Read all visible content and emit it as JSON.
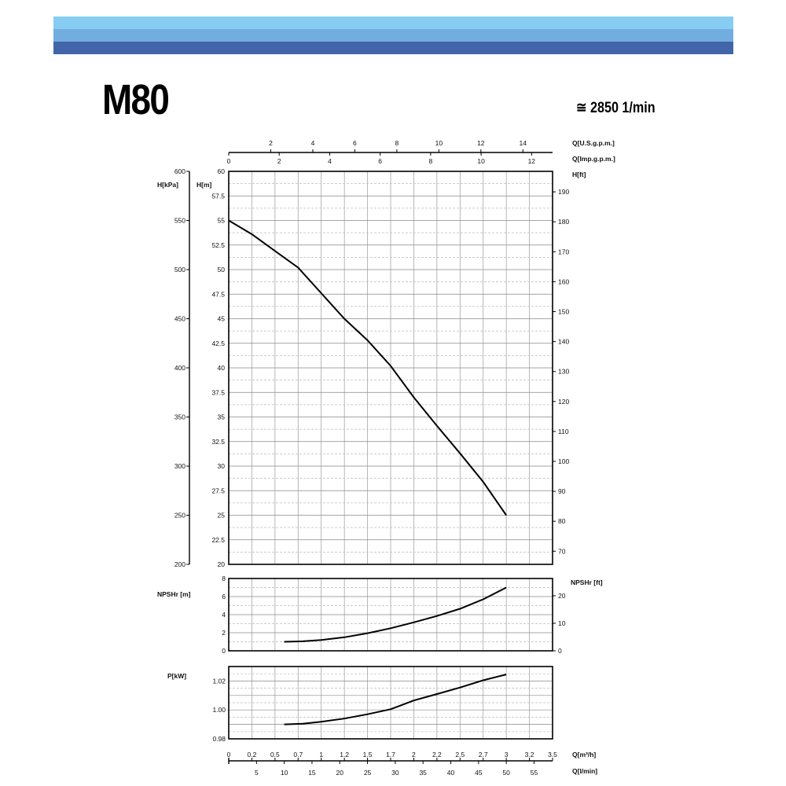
{
  "header": {
    "colors": [
      "#87ccf2",
      "#72ade0",
      "#4264a8"
    ],
    "title": "M80",
    "speed": "≅ 2850 1/min"
  },
  "chart_data": [
    {
      "type": "line",
      "name": "head-curve",
      "xlabel": "Q[m³/h]",
      "x2label": "Q[l/min]",
      "ylabel": "H[m]",
      "ylabel_kpa": "H[kPa]",
      "ylabel_ft": "H[ft]",
      "top_label_usgpm": "Q[U.S.g.p.m.]",
      "top_label_impgpm": "Q[Imp.g.p.m.]",
      "xlim": [
        0,
        3.5
      ],
      "ylim": [
        20,
        60
      ],
      "x_ticks_m3h": [
        "0",
        "0.2",
        "0.5",
        "0.7",
        "1",
        "1.2",
        "1.5",
        "1.7",
        "2",
        "2.2",
        "2.5",
        "2.7",
        "3",
        "3.2",
        "3.5"
      ],
      "x_ticks_lmin": [
        "5",
        "10",
        "15",
        "20",
        "25",
        "30",
        "35",
        "40",
        "45",
        "50",
        "55"
      ],
      "x_ticks_usgpm": [
        "2",
        "4",
        "6",
        "8",
        "10",
        "12",
        "14"
      ],
      "x_ticks_impgpm": [
        "0",
        "2",
        "4",
        "6",
        "8",
        "10",
        "12"
      ],
      "y_ticks_m": [
        "20",
        "22.5",
        "25",
        "27.5",
        "30",
        "32.5",
        "35",
        "37.5",
        "40",
        "42.5",
        "45",
        "47.5",
        "50",
        "52.5",
        "55",
        "57.5",
        "60"
      ],
      "y_ticks_kpa": [
        "200",
        "250",
        "300",
        "350",
        "400",
        "450",
        "500",
        "550",
        "600"
      ],
      "y_ticks_ft": [
        "70",
        "80",
        "90",
        "100",
        "110",
        "120",
        "130",
        "140",
        "150",
        "160",
        "170",
        "180",
        "190"
      ],
      "grid": true,
      "x": [
        0,
        0.25,
        0.5,
        0.75,
        1.0,
        1.25,
        1.5,
        1.75,
        2.0,
        2.25,
        2.5,
        2.75,
        3.0
      ],
      "y": [
        55,
        53.6,
        51.9,
        50.2,
        47.6,
        45.0,
        42.8,
        40.2,
        37.0,
        34.1,
        31.3,
        28.4,
        25.0
      ]
    },
    {
      "type": "line",
      "name": "npsh-curve",
      "ylabel": "NPSHr [m]",
      "ylabel_ft": "NPSHr [ft]",
      "ylim": [
        0,
        8
      ],
      "y_ticks": [
        "0",
        "2",
        "4",
        "6",
        "8"
      ],
      "y_ticks_ft": [
        "0",
        "10",
        "20"
      ],
      "x": [
        0.6,
        0.8,
        1.0,
        1.25,
        1.5,
        1.75,
        2.0,
        2.25,
        2.5,
        2.75,
        3.0
      ],
      "y": [
        1.0,
        1.05,
        1.2,
        1.5,
        1.95,
        2.5,
        3.15,
        3.85,
        4.65,
        5.7,
        7.0
      ]
    },
    {
      "type": "line",
      "name": "power-curve",
      "ylabel": "P[kW]",
      "ylim": [
        0.98,
        1.03
      ],
      "y_ticks": [
        "0.98",
        "1.00",
        "1.02"
      ],
      "x": [
        0.6,
        0.8,
        1.0,
        1.25,
        1.5,
        1.75,
        2.0,
        2.25,
        2.5,
        2.75,
        3.0
      ],
      "y": [
        0.99,
        0.9905,
        0.9918,
        0.994,
        0.997,
        1.0005,
        1.0065,
        1.011,
        1.0155,
        1.0205,
        1.0245
      ]
    }
  ]
}
